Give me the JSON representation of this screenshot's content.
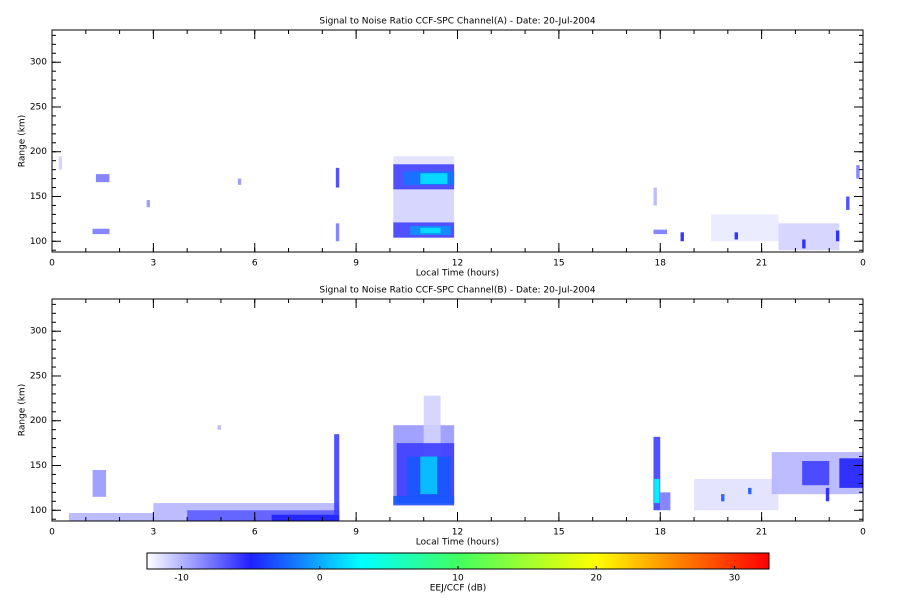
{
  "chart_data": [
    {
      "type": "heatmap",
      "title": "Signal to Noise Ratio CCF-SPC Channel(A) - Date: 20-Jul-2004",
      "x_label": "Local Time (hours)",
      "y_label": "Range (km)",
      "xlim": [
        0,
        24
      ],
      "xticks": [
        0,
        3,
        6,
        9,
        12,
        15,
        18,
        21,
        {
          "value": 24,
          "label": "0"
        }
      ],
      "xminor": 1,
      "ylim": [
        88,
        336
      ],
      "yticks": [
        100,
        150,
        200,
        250,
        300
      ],
      "yminor": 10,
      "patches": [
        {
          "x": [
            10.1,
            11.9
          ],
          "y": [
            120,
            160
          ],
          "value": -11
        },
        {
          "x": [
            10.1,
            11.9
          ],
          "y": [
            185,
            195
          ],
          "value": -11.5
        },
        {
          "x": [
            10.1,
            11.9
          ],
          "y": [
            158,
            186
          ],
          "value": -6
        },
        {
          "x": [
            10.4,
            11.9
          ],
          "y": [
            163,
            178
          ],
          "value": -2
        },
        {
          "x": [
            10.9,
            11.7
          ],
          "y": [
            164,
            176
          ],
          "value": 2
        },
        {
          "x": [
            10.1,
            11.9
          ],
          "y": [
            104,
            121
          ],
          "value": -6
        },
        {
          "x": [
            10.6,
            11.8
          ],
          "y": [
            107,
            117
          ],
          "value": -1
        },
        {
          "x": [
            10.9,
            11.5
          ],
          "y": [
            109,
            115
          ],
          "value": 2
        },
        {
          "x": [
            8.4,
            8.5
          ],
          "y": [
            160,
            182
          ],
          "value": -6
        },
        {
          "x": [
            8.4,
            8.5
          ],
          "y": [
            100,
            120
          ],
          "value": -8
        },
        {
          "x": [
            1.3,
            1.7
          ],
          "y": [
            166,
            175
          ],
          "value": -8
        },
        {
          "x": [
            1.2,
            1.7
          ],
          "y": [
            108,
            114
          ],
          "value": -8
        },
        {
          "x": [
            0.2,
            0.3
          ],
          "y": [
            180,
            195
          ],
          "value": -11
        },
        {
          "x": [
            2.8,
            2.9
          ],
          "y": [
            138,
            146
          ],
          "value": -9
        },
        {
          "x": [
            5.5,
            5.6
          ],
          "y": [
            163,
            170
          ],
          "value": -9
        },
        {
          "x": [
            17.8,
            17.9
          ],
          "y": [
            140,
            160
          ],
          "value": -10
        },
        {
          "x": [
            17.8,
            18.2
          ],
          "y": [
            108,
            113
          ],
          "value": -8
        },
        {
          "x": [
            18.6,
            18.7
          ],
          "y": [
            100,
            110
          ],
          "value": -5
        },
        {
          "x": [
            19.5,
            21.5
          ],
          "y": [
            100,
            130
          ],
          "value": -11.8
        },
        {
          "x": [
            21.5,
            23.3
          ],
          "y": [
            90,
            120
          ],
          "value": -11
        },
        {
          "x": [
            20.2,
            20.3
          ],
          "y": [
            102,
            110
          ],
          "value": -5
        },
        {
          "x": [
            22.2,
            22.3
          ],
          "y": [
            92,
            102
          ],
          "value": -5
        },
        {
          "x": [
            23.2,
            23.3
          ],
          "y": [
            100,
            112
          ],
          "value": -5
        },
        {
          "x": [
            23.5,
            23.6
          ],
          "y": [
            135,
            150
          ],
          "value": -6
        },
        {
          "x": [
            23.8,
            23.9
          ],
          "y": [
            170,
            185
          ],
          "value": -8
        }
      ]
    },
    {
      "type": "heatmap",
      "title": "Signal to Noise Ratio CCF-SPC Channel(B) - Date: 20-Jul-2004",
      "x_label": "Local Time (hours)",
      "y_label": "Range (km)",
      "xlim": [
        0,
        24
      ],
      "xticks": [
        0,
        3,
        6,
        9,
        12,
        15,
        18,
        21,
        {
          "value": 24,
          "label": "0"
        }
      ],
      "xminor": 1,
      "ylim": [
        88,
        336
      ],
      "yticks": [
        100,
        150,
        200,
        250,
        300
      ],
      "yminor": 10,
      "patches": [
        {
          "x": [
            0.5,
            3
          ],
          "y": [
            88,
            97
          ],
          "value": -10
        },
        {
          "x": [
            3,
            8.5
          ],
          "y": [
            88,
            108
          ],
          "value": -10
        },
        {
          "x": [
            4,
            8.5
          ],
          "y": [
            88,
            100
          ],
          "value": -7
        },
        {
          "x": [
            6.5,
            8.5
          ],
          "y": [
            88,
            95
          ],
          "value": -5
        },
        {
          "x": [
            8.35,
            8.5
          ],
          "y": [
            95,
            185
          ],
          "value": -6
        },
        {
          "x": [
            1.2,
            1.6
          ],
          "y": [
            115,
            145
          ],
          "value": -9
        },
        {
          "x": [
            10.1,
            11.9
          ],
          "y": [
            105,
            195
          ],
          "value": -9
        },
        {
          "x": [
            11.0,
            11.5
          ],
          "y": [
            160,
            228
          ],
          "value": -11
        },
        {
          "x": [
            10.2,
            11.9
          ],
          "y": [
            108,
            175
          ],
          "value": -6
        },
        {
          "x": [
            10.5,
            11.8
          ],
          "y": [
            115,
            160
          ],
          "value": -3
        },
        {
          "x": [
            10.9,
            11.4
          ],
          "y": [
            118,
            160
          ],
          "value": 1
        },
        {
          "x": [
            10.1,
            11.9
          ],
          "y": [
            106,
            116
          ],
          "value": -3
        },
        {
          "x": [
            17.8,
            18.0
          ],
          "y": [
            100,
            182
          ],
          "value": -6
        },
        {
          "x": [
            17.82,
            17.98
          ],
          "y": [
            108,
            135
          ],
          "value": 3
        },
        {
          "x": [
            18.0,
            18.3
          ],
          "y": [
            100,
            120
          ],
          "value": -8
        },
        {
          "x": [
            19,
            21.5
          ],
          "y": [
            100,
            135
          ],
          "value": -11.5
        },
        {
          "x": [
            21.3,
            24
          ],
          "y": [
            118,
            165
          ],
          "value": -10
        },
        {
          "x": [
            22.2,
            23.0
          ],
          "y": [
            128,
            155
          ],
          "value": -6
        },
        {
          "x": [
            23.3,
            24
          ],
          "y": [
            125,
            158
          ],
          "value": -5
        },
        {
          "x": [
            22.9,
            23.0
          ],
          "y": [
            110,
            125
          ],
          "value": -5
        },
        {
          "x": [
            19.8,
            19.9
          ],
          "y": [
            110,
            118
          ],
          "value": -3
        },
        {
          "x": [
            20.6,
            20.7
          ],
          "y": [
            118,
            125
          ],
          "value": -3
        },
        {
          "x": [
            4.9,
            5.0
          ],
          "y": [
            190,
            195
          ],
          "value": -10
        }
      ]
    },
    {
      "type": "colorbar",
      "label": "EEJ/CCF (dB)",
      "clim": [
        -12.5,
        32.5
      ],
      "ticks": [
        -10,
        0,
        10,
        20,
        30
      ],
      "colormap": [
        {
          "value": -12.5,
          "color": "#ffffff"
        },
        {
          "value": -5,
          "color": "#2020ff"
        },
        {
          "value": 3,
          "color": "#00ffff"
        },
        {
          "value": 10,
          "color": "#40ff60"
        },
        {
          "value": 20,
          "color": "#ffff00"
        },
        {
          "value": 26,
          "color": "#ff8000"
        },
        {
          "value": 32.5,
          "color": "#ff0000"
        }
      ]
    }
  ]
}
